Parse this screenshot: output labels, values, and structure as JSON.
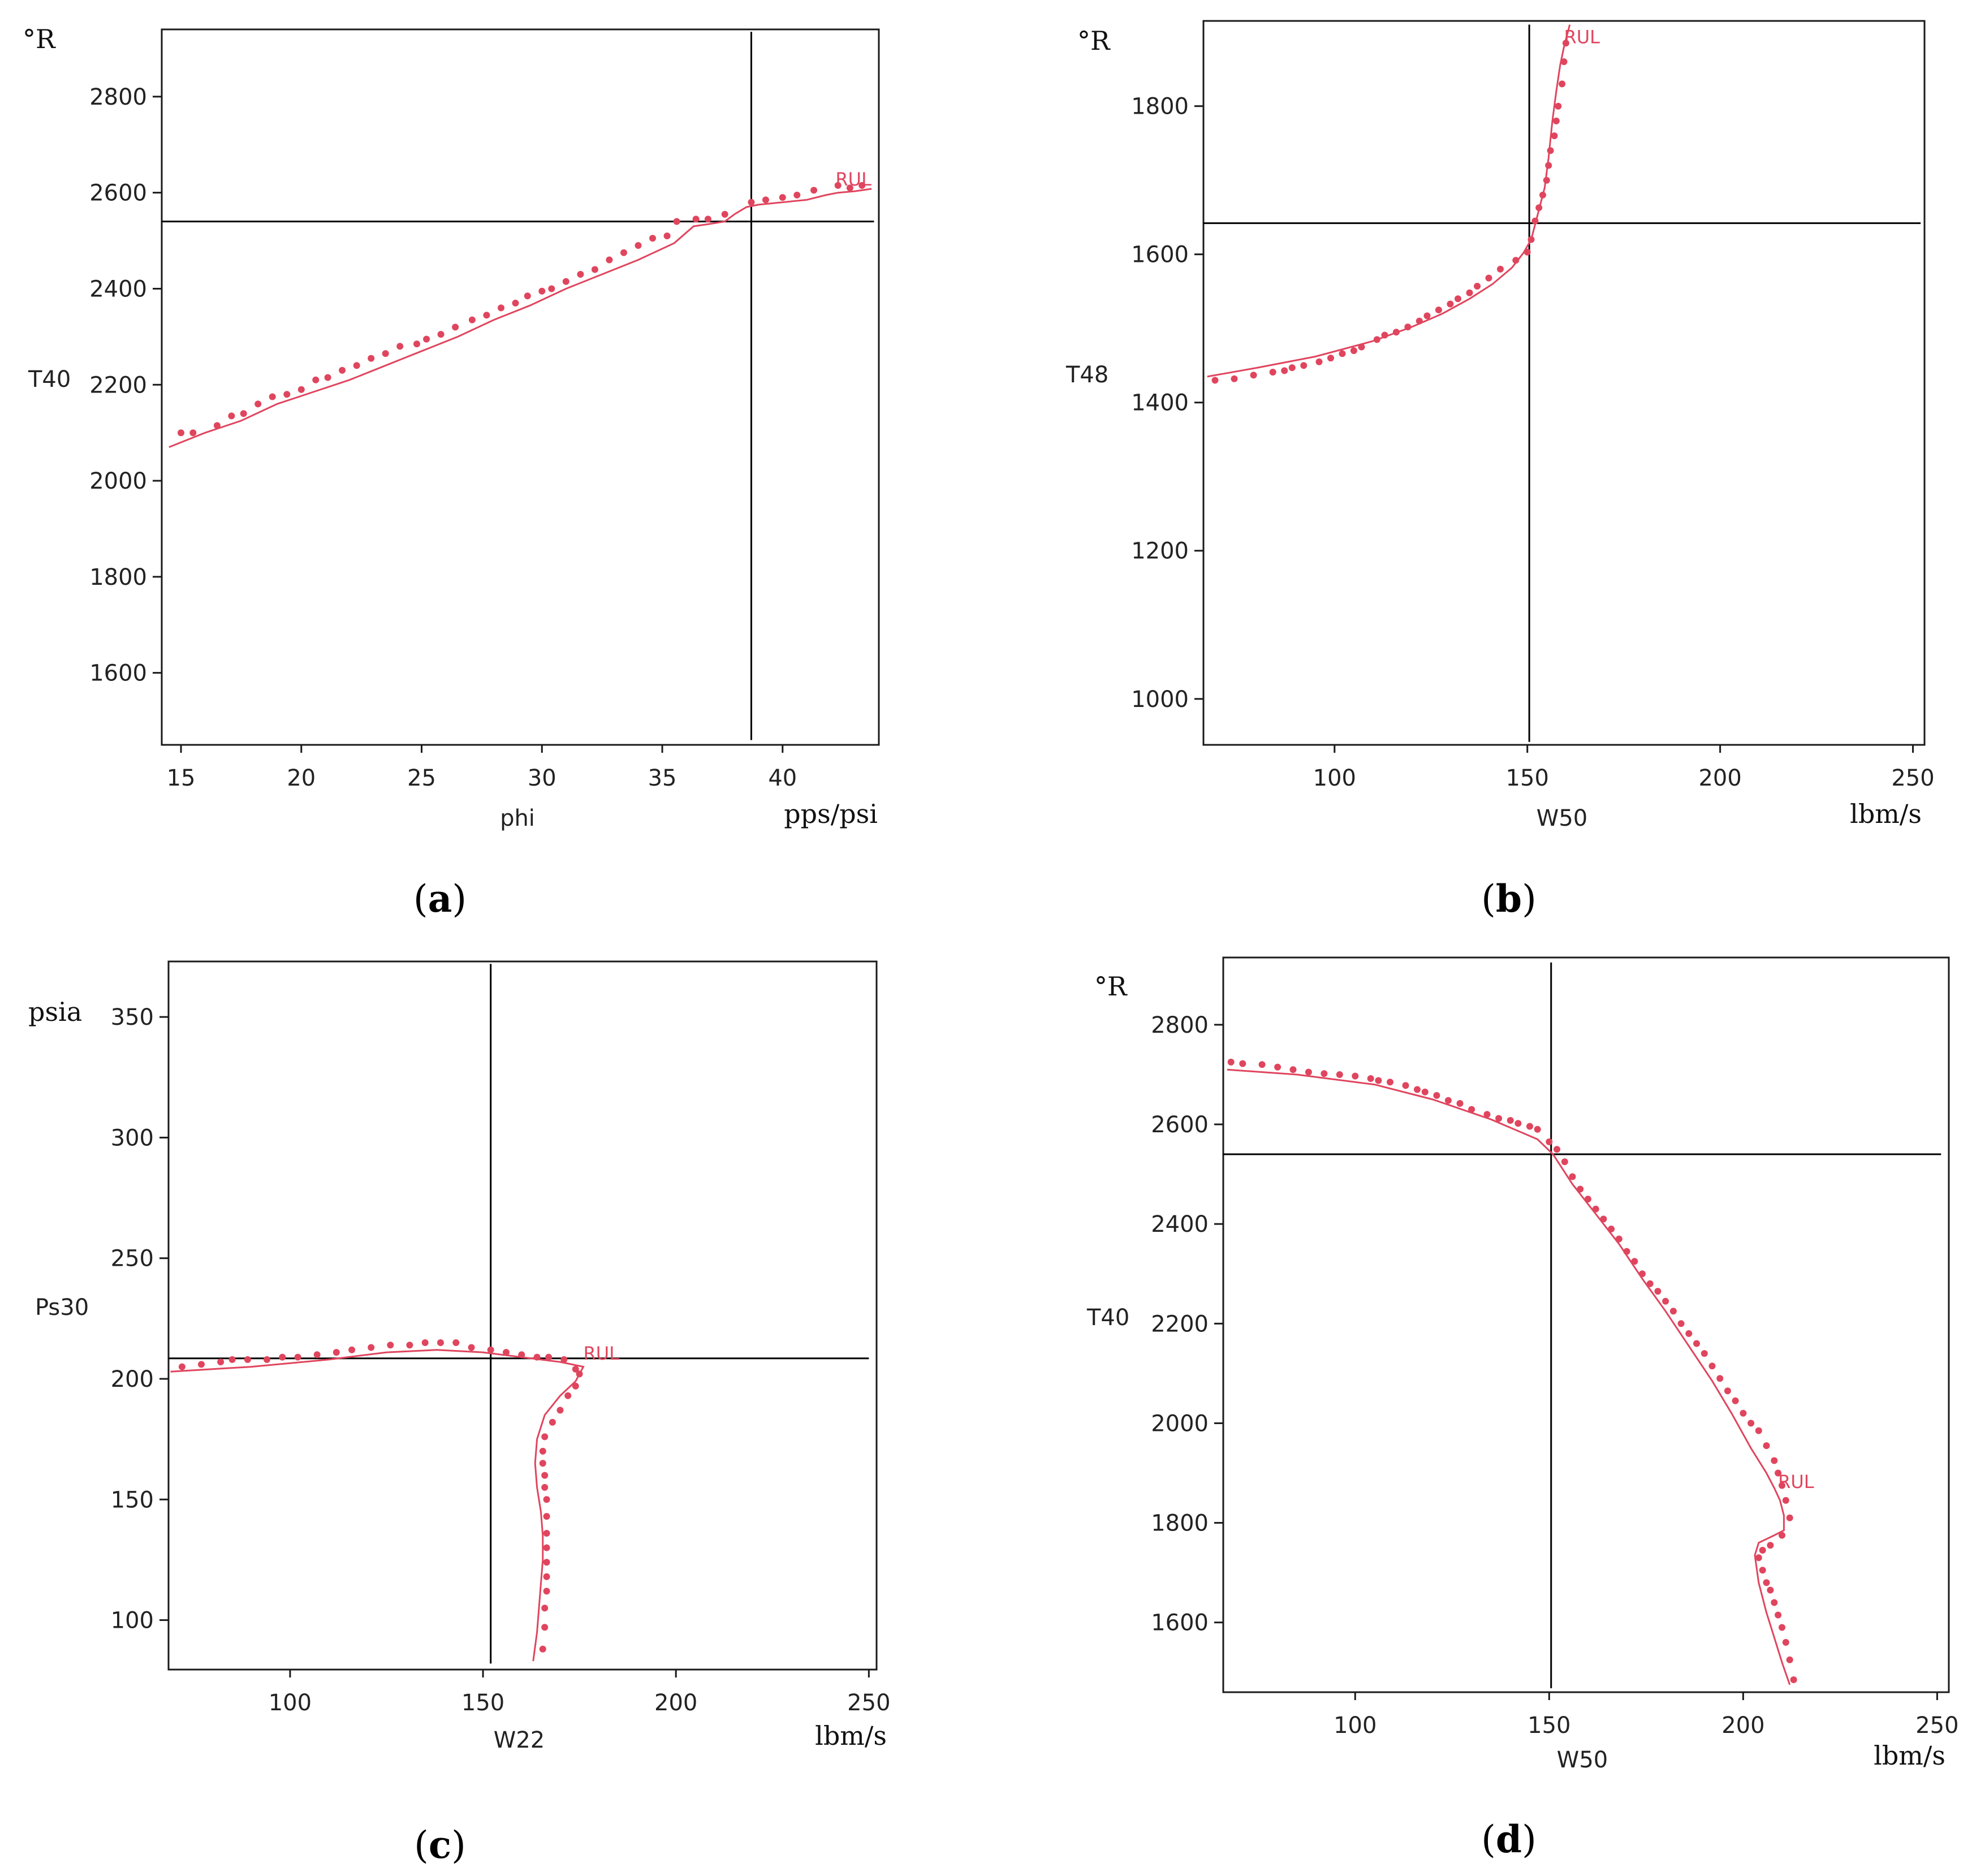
{
  "colors": {
    "model": "#e0455e",
    "reference": "#000000",
    "frame": "#1a1a1a",
    "text": "#222222"
  },
  "chart_data": [
    {
      "id": "a",
      "caption_open": "(",
      "caption_letter": "a",
      "caption_close": ")",
      "type": "scatter",
      "x_var_label": "phi",
      "x_unit": "pps/psi",
      "y_var_label": "T40",
      "y_unit": "°R",
      "xlim": [
        14.2,
        44.0
      ],
      "ylim": [
        1450,
        2940
      ],
      "x_ticks": [
        15,
        20,
        25,
        30,
        35,
        40
      ],
      "y_ticks": [
        1600,
        1800,
        2000,
        2200,
        2400,
        2600,
        2800
      ],
      "annotation": {
        "text": "RUL",
        "x": 42.2,
        "y": 2615
      },
      "reference_lines": [
        {
          "axis": "h",
          "value": 2540,
          "from": 14.2,
          "to": 43.8
        },
        {
          "axis": "v",
          "value": 38.7,
          "from": 1460,
          "to": 2935
        }
      ],
      "model_curve": {
        "x": [
          14.5,
          16.0,
          17.5,
          19.0,
          20.5,
          22.0,
          23.5,
          25.0,
          26.5,
          28.0,
          29.5,
          31.0,
          32.5,
          34.0,
          35.5,
          36.3,
          37.0,
          37.6,
          38.0,
          38.5,
          39.0,
          40.0,
          41.0,
          41.8,
          42.3,
          43.0,
          43.7
        ],
        "y": [
          2070,
          2100,
          2125,
          2160,
          2185,
          2210,
          2240,
          2270,
          2300,
          2335,
          2365,
          2400,
          2430,
          2460,
          2495,
          2530,
          2535,
          2540,
          2555,
          2570,
          2575,
          2580,
          2585,
          2595,
          2600,
          2603,
          2608
        ]
      },
      "model_points": {
        "x": [
          15.0,
          15.5,
          16.5,
          17.1,
          17.6,
          18.2,
          18.8,
          19.4,
          20.0,
          20.6,
          21.1,
          21.7,
          22.3,
          22.9,
          23.5,
          24.1,
          24.8,
          25.2,
          25.8,
          26.4,
          27.1,
          27.7,
          28.3,
          28.9,
          29.4,
          30.0,
          30.4,
          31.0,
          31.6,
          32.2,
          32.8,
          33.4,
          34.0,
          34.6,
          35.2,
          35.6,
          36.4,
          36.9,
          37.6,
          38.7,
          39.3,
          40.0,
          40.6,
          41.3,
          42.3,
          42.8,
          43.3
        ],
        "y": [
          2100,
          2100,
          2115,
          2135,
          2140,
          2160,
          2175,
          2180,
          2190,
          2210,
          2215,
          2230,
          2240,
          2255,
          2265,
          2280,
          2285,
          2295,
          2305,
          2320,
          2335,
          2345,
          2360,
          2370,
          2385,
          2395,
          2400,
          2415,
          2430,
          2440,
          2460,
          2475,
          2490,
          2505,
          2510,
          2540,
          2545,
          2545,
          2555,
          2580,
          2585,
          2590,
          2595,
          2605,
          2615,
          2610,
          2615
        ]
      }
    },
    {
      "id": "b",
      "caption_open": "(",
      "caption_letter": "b",
      "caption_close": ")",
      "type": "scatter",
      "x_var_label": "W50",
      "x_unit": "lbm/s",
      "y_var_label": "T48",
      "y_unit": "°R",
      "xlim": [
        66,
        253
      ],
      "ylim": [
        938,
        1915
      ],
      "x_ticks": [
        100,
        150,
        200,
        250
      ],
      "y_ticks": [
        1000,
        1200,
        1400,
        1600,
        1800
      ],
      "annotation": {
        "text": "RUL",
        "x": 159.5,
        "y": 1885
      },
      "reference_lines": [
        {
          "axis": "h",
          "value": 1642,
          "from": 66,
          "to": 252
        },
        {
          "axis": "v",
          "value": 150.5,
          "from": 942,
          "to": 1910
        }
      ],
      "model_curve": {
        "x": [
          67,
          80,
          95,
          110,
          120,
          128,
          135,
          141,
          146,
          149,
          151,
          152,
          153,
          154.5,
          155.5,
          156.5,
          157.5,
          158.5,
          159.5,
          160.5,
          161
        ],
        "y": [
          1435,
          1447,
          1462,
          1483,
          1502,
          1520,
          1540,
          1560,
          1582,
          1602,
          1620,
          1640,
          1660,
          1690,
          1730,
          1780,
          1820,
          1855,
          1880,
          1900,
          1910
        ]
      },
      "model_points": {
        "x": [
          69,
          74,
          79,
          84,
          87,
          89,
          92,
          96,
          99,
          102,
          105,
          107,
          111,
          113,
          116,
          119,
          122,
          124,
          127,
          130,
          132,
          135,
          137,
          140,
          143,
          147,
          150,
          151,
          152,
          153,
          154,
          155,
          155.5,
          156,
          157,
          157.5,
          158,
          159,
          159.5,
          160
        ],
        "y": [
          1430,
          1432,
          1437,
          1441,
          1443,
          1447,
          1450,
          1455,
          1460,
          1466,
          1470,
          1475,
          1485,
          1491,
          1495,
          1502,
          1510,
          1517,
          1525,
          1533,
          1540,
          1548,
          1557,
          1568,
          1580,
          1592,
          1603,
          1620,
          1645,
          1663,
          1680,
          1700,
          1720,
          1740,
          1760,
          1780,
          1800,
          1830,
          1860,
          1885
        ]
      }
    },
    {
      "id": "c",
      "caption_open": "(",
      "caption_letter": "c",
      "caption_close": ")",
      "type": "scatter",
      "x_var_label": "W22",
      "x_unit": "lbm/s",
      "y_var_label": "Ps30",
      "y_unit": "psia",
      "xlim": [
        68.5,
        252
      ],
      "ylim": [
        79.5,
        373
      ],
      "x_ticks": [
        100,
        150,
        200,
        250
      ],
      "y_ticks": [
        100,
        150,
        200,
        250,
        300,
        350
      ],
      "annotation": {
        "text": "RUL",
        "x": 176,
        "y": 208
      },
      "reference_lines": [
        {
          "axis": "h",
          "value": 208.5,
          "from": 68.5,
          "to": 250
        },
        {
          "axis": "v",
          "value": 152,
          "from": 82,
          "to": 372
        }
      ],
      "model_curve": {
        "x": [
          69,
          90,
          110,
          125,
          138,
          150,
          160,
          170,
          176,
          174,
          170,
          166,
          164,
          163.5,
          164,
          165,
          165.5,
          165.5,
          165,
          164.5,
          164,
          163
        ],
        "y": [
          203,
          205,
          208,
          211,
          212,
          211,
          209,
          207,
          205,
          199,
          193,
          185,
          175,
          165,
          155,
          145,
          135,
          125,
          115,
          105,
          95,
          83
        ]
      },
      "model_points": {
        "x": [
          72,
          77,
          82,
          85,
          89,
          94,
          98,
          102,
          107,
          112,
          116,
          121,
          126,
          131,
          135,
          139,
          143,
          147,
          152,
          156,
          160,
          164,
          167,
          171,
          174,
          175,
          174,
          172,
          170,
          168,
          166,
          165.5,
          165.5,
          166,
          166,
          166.5,
          166.5,
          166.5,
          166.5,
          166.5,
          166.5,
          166.5,
          166,
          166,
          165.5
        ],
        "y": [
          205,
          206,
          207,
          208,
          208,
          208,
          209,
          209,
          210,
          211,
          212,
          213,
          214,
          214,
          215,
          215,
          215,
          213,
          212,
          211,
          210,
          209,
          209,
          208,
          204,
          202,
          197,
          193,
          187,
          182,
          176,
          170,
          165,
          160,
          155,
          150,
          143,
          136,
          130,
          124,
          118,
          112,
          105,
          97,
          88
        ]
      }
    },
    {
      "id": "d",
      "caption_open": "(",
      "caption_letter": "d",
      "caption_close": ")",
      "type": "scatter",
      "x_var_label": "W50",
      "x_unit": "lbm/s",
      "y_var_label": "T40",
      "y_unit": "°R",
      "xlim": [
        66,
        253
      ],
      "ylim": [
        1460,
        2935
      ],
      "x_ticks": [
        100,
        150,
        200,
        250
      ],
      "y_ticks": [
        1600,
        1800,
        2000,
        2200,
        2400,
        2600,
        2800
      ],
      "annotation": {
        "text": "RUL",
        "x": 209,
        "y": 1870
      },
      "reference_lines": [
        {
          "axis": "h",
          "value": 2540,
          "from": 66,
          "to": 251
        },
        {
          "axis": "v",
          "value": 150.5,
          "from": 1468,
          "to": 2925
        }
      ],
      "model_curve": {
        "x": [
          67,
          85,
          105,
          120,
          135,
          147,
          151,
          156,
          162,
          168,
          174,
          180,
          186,
          192,
          197,
          202,
          206,
          208,
          209.5,
          210.5,
          210.5,
          208,
          204,
          203,
          204,
          206,
          208,
          210,
          212
        ],
        "y": [
          2710,
          2700,
          2680,
          2650,
          2610,
          2570,
          2540,
          2480,
          2420,
          2360,
          2290,
          2225,
          2155,
          2085,
          2020,
          1950,
          1900,
          1870,
          1845,
          1815,
          1785,
          1775,
          1760,
          1735,
          1680,
          1620,
          1570,
          1520,
          1475
        ]
      },
      "model_points": {
        "x": [
          68,
          71,
          76,
          80,
          84,
          88,
          92,
          96,
          100,
          104,
          106,
          109,
          113,
          116,
          118,
          121,
          124,
          127,
          130,
          134,
          137,
          140,
          142,
          145,
          147,
          150,
          152,
          154,
          156,
          158,
          160,
          162,
          164,
          166,
          168,
          170,
          172,
          174,
          176,
          178,
          180,
          182,
          184,
          186,
          188,
          190,
          192,
          194,
          196,
          198,
          200,
          202,
          204,
          206,
          208,
          209,
          210,
          211,
          212,
          210,
          207,
          205,
          204,
          205,
          206,
          207,
          208,
          209,
          210,
          211,
          212,
          213
        ],
        "y": [
          2725,
          2722,
          2720,
          2715,
          2710,
          2705,
          2702,
          2700,
          2697,
          2692,
          2688,
          2685,
          2678,
          2670,
          2665,
          2658,
          2648,
          2642,
          2630,
          2620,
          2612,
          2608,
          2602,
          2596,
          2590,
          2565,
          2550,
          2525,
          2495,
          2470,
          2450,
          2430,
          2410,
          2390,
          2370,
          2345,
          2325,
          2300,
          2280,
          2265,
          2245,
          2225,
          2200,
          2180,
          2160,
          2140,
          2115,
          2090,
          2065,
          2045,
          2020,
          2000,
          1985,
          1955,
          1925,
          1900,
          1875,
          1845,
          1810,
          1775,
          1755,
          1745,
          1730,
          1705,
          1680,
          1665,
          1640,
          1615,
          1590,
          1560,
          1525,
          1485
        ]
      }
    }
  ]
}
